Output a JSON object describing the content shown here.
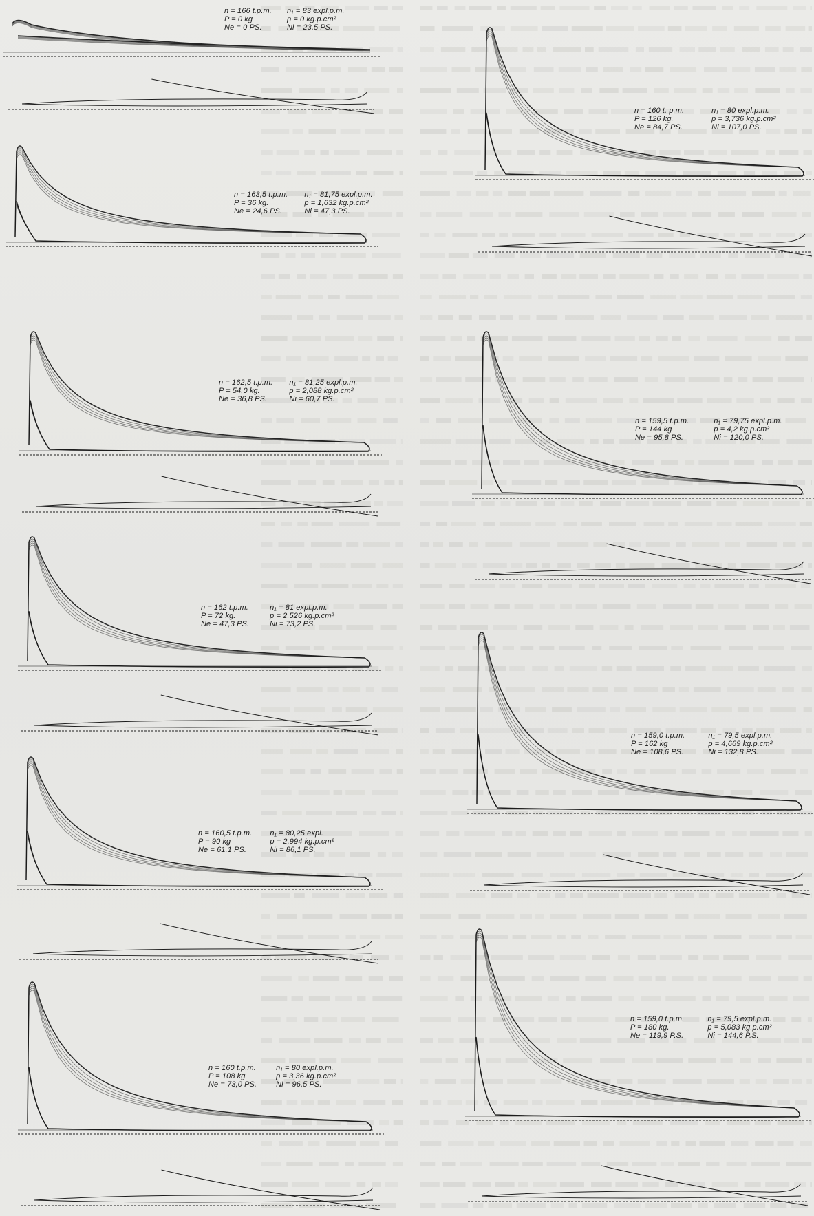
{
  "page": {
    "background": "#e9e9e6",
    "ink": "#1c1c1c"
  },
  "diagrams": [
    {
      "id": "L1",
      "n": "n = 166 t.p.m.",
      "n1": "n₁ = 83 expl.p.m.",
      "P": "P = 0 kg",
      "p": "p = 0 kg.p.cm²",
      "Ne": "Ne = 0 PS.",
      "Ni": "Ni = 23,5 PS."
    },
    {
      "id": "L2",
      "n": "n = 163,5 t.p.m.",
      "n1": "n₁ = 81,75 expl.p.m.",
      "P": "P = 36 kg.",
      "p": "p = 1,632 kg.p.cm²",
      "Ne": "Ne = 24,6 PS.",
      "Ni": "Ni = 47,3 PS."
    },
    {
      "id": "L3",
      "n": "n = 162,5 t.p.m.",
      "n1": "n₁ = 81,25 expl.p.m.",
      "P": "P = 54,0 kg.",
      "p": "p = 2,088 kg.p.cm²",
      "Ne": "Ne = 36,8 PS.",
      "Ni": "Ni = 60,7 PS."
    },
    {
      "id": "L4",
      "n": "n = 162 t.p.m.",
      "n1": "n₁ = 81 expl.p.m.",
      "P": "P = 72 kg.",
      "p": "p = 2,526 kg.p.cm²",
      "Ne": "Ne = 47,3 PS.",
      "Ni": "Ni = 73,2 PS."
    },
    {
      "id": "L5",
      "n": "n = 160,5 t.p.m.",
      "n1": "n₁ = 80,25 expl.",
      "P": "P = 90 kg",
      "p": "p = 2,994 kg.p.cm²",
      "Ne": "Ne = 61,1 PS.",
      "Ni": "Ni = 86,1 PS."
    },
    {
      "id": "L6",
      "n": "n = 160 t.p.m.",
      "n1": "n₁ = 80 expl.p.m.",
      "P": "P = 108 kg",
      "p": "p = 3,36 kg.p.cm²",
      "Ne": "Ne = 73,0 PS.",
      "Ni": "Ni = 96,5 PS."
    },
    {
      "id": "R1",
      "n": "n = 160 t. p.m.",
      "n1": "n₁ = 80 expl.p.m.",
      "P": "P = 126 kg.",
      "p": "p = 3,736 kg.p.cm²",
      "Ne": "Ne = 84,7 PS.",
      "Ni": "Ni = 107,0 PS."
    },
    {
      "id": "R2",
      "n": "n = 159,5 t.p.m.",
      "n1": "n₁ = 79,75 expl.p.m.",
      "P": "P = 144 kg",
      "p": "p = 4,2 kg.p.cm²",
      "Ne": "Ne = 95,8 PS.",
      "Ni": "Ni = 120,0 PS."
    },
    {
      "id": "R3",
      "n": "n = 159,0 t.p.m.",
      "n1": "n₁ = 79,5 expl.p.m.",
      "P": "P = 162 kg",
      "p": "p = 4,669 kg.p.cm²",
      "Ne": "Ne = 108,6 PS.",
      "Ni": "Ni = 132,8 PS."
    },
    {
      "id": "R4",
      "n": "n = 159,0 t.p.m.",
      "n1": "n₁ = 79,5 expl.p.m.",
      "P": "P = 180 kg.",
      "p": "p = 5,083 kg.p.cm²",
      "Ne": "Ne = 119,9 P.S.",
      "Ni": "Ni = 144,6 P.S."
    }
  ]
}
